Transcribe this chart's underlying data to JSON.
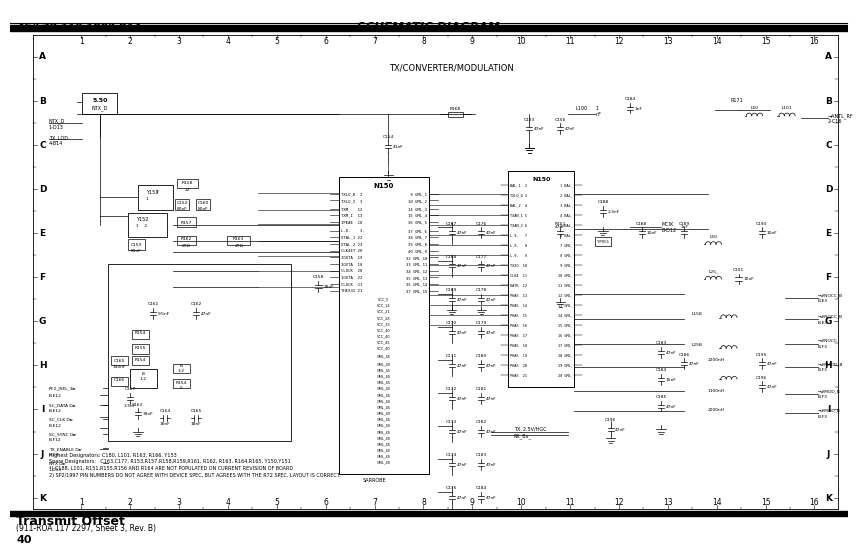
{
  "title_left": "AE/LZB 119 1902 R1A",
  "title_center": "SCHEMATIC DIAGRAM",
  "footer_bold": "Transmit Offset",
  "footer_small": "(911-ROA 117 2297, Sheet 3, Rev. B)",
  "footer_page": "40",
  "bg": "#ffffff",
  "col_numbers": [
    "1",
    "2",
    "3",
    "4",
    "5",
    "6",
    "7",
    "8",
    "9",
    "10",
    "11",
    "12",
    "13",
    "14",
    "15",
    "16"
  ],
  "row_letters": [
    "A",
    "B",
    "C",
    "D",
    "E",
    "F",
    "G",
    "H",
    "I",
    "J",
    "K"
  ],
  "section_label": "TX/CONVERTER/MODULATION",
  "notes": [
    "Highest Designators: C180, L101, R163, R166, Y153",
    "Spare Designators:   C163,C177, R153,R157,R158,R159,R161, R162, R163, R164,R165, Y150,Y151",
    "*) C188, L101, R151,R155,R156 AND R164 ARE NOT POPULATED ON CURRENT REVISION OF BOARD",
    "2) SP2/1997 PIN NUMBERS DO NOT AGREE WITH DEVICE SPEC, BUT AGREES WITH THE R72 SPEC. LAYOUT IS CORRECT."
  ]
}
